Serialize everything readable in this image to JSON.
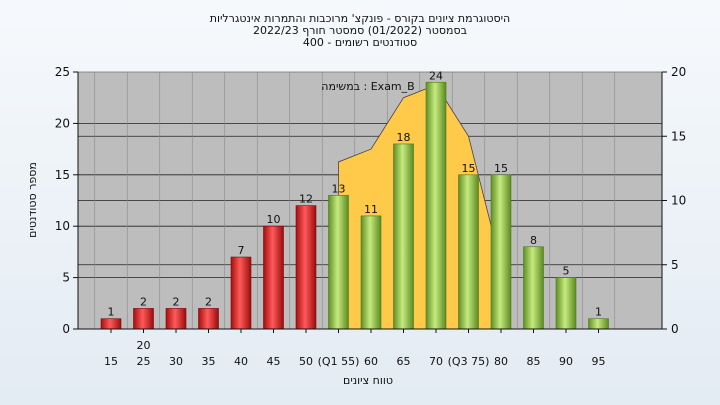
{
  "chart_data": {
    "type": "bar",
    "title_lines": [
      "היסטוגרמת ציונים בקורס - פונקצ' מרוכבות והתמרות אינטגרליות",
      "בסמסטר  (01/2022)  סמסטר חורף  2022/23",
      "סטודנטים רשומים - 400"
    ],
    "xlabel": "טווח ציונים",
    "ylabel": "מספר סטודנטים",
    "annotation": "במשימה : Exam_B",
    "bar_labels": [
      "15",
      "25",
      "30",
      "35",
      "40",
      "45",
      "50",
      "55",
      "60",
      "65",
      "70",
      "75",
      "80",
      "85",
      "90",
      "95"
    ],
    "values": [
      1,
      2,
      2,
      2,
      7,
      10,
      12,
      13,
      11,
      18,
      24,
      15,
      15,
      8,
      5,
      1
    ],
    "bar_colors": [
      "red",
      "red",
      "red",
      "red",
      "red",
      "red",
      "red",
      "green",
      "green",
      "green",
      "green",
      "green",
      "green",
      "green",
      "green",
      "green"
    ],
    "x_ticks_lower": [
      "15",
      "25",
      "30",
      "35",
      "40",
      "45",
      "50",
      "(Q1 55)",
      "60",
      "65",
      "70",
      "(Q3 75)",
      "80",
      "85",
      "90",
      "95"
    ],
    "x_ticks_upper": [
      "20"
    ],
    "ylim_left": [
      0,
      25
    ],
    "yticks_left": [
      0,
      5,
      10,
      15,
      20,
      25
    ],
    "ylim_right": [
      0,
      20
    ],
    "yticks_right": [
      0,
      5,
      10,
      15,
      20
    ],
    "area_series": {
      "x": [
        "55",
        "60",
        "65",
        "70",
        "75",
        "80"
      ],
      "values": [
        13,
        14,
        18,
        19,
        15,
        5
      ]
    },
    "grid": true,
    "colors": {
      "red_bar": "#e8262a",
      "green_bar": "#9acd47",
      "area": "#ffc94a",
      "plot_bg": "#bdbdbd",
      "page_bg": "#eaf0f6"
    }
  }
}
